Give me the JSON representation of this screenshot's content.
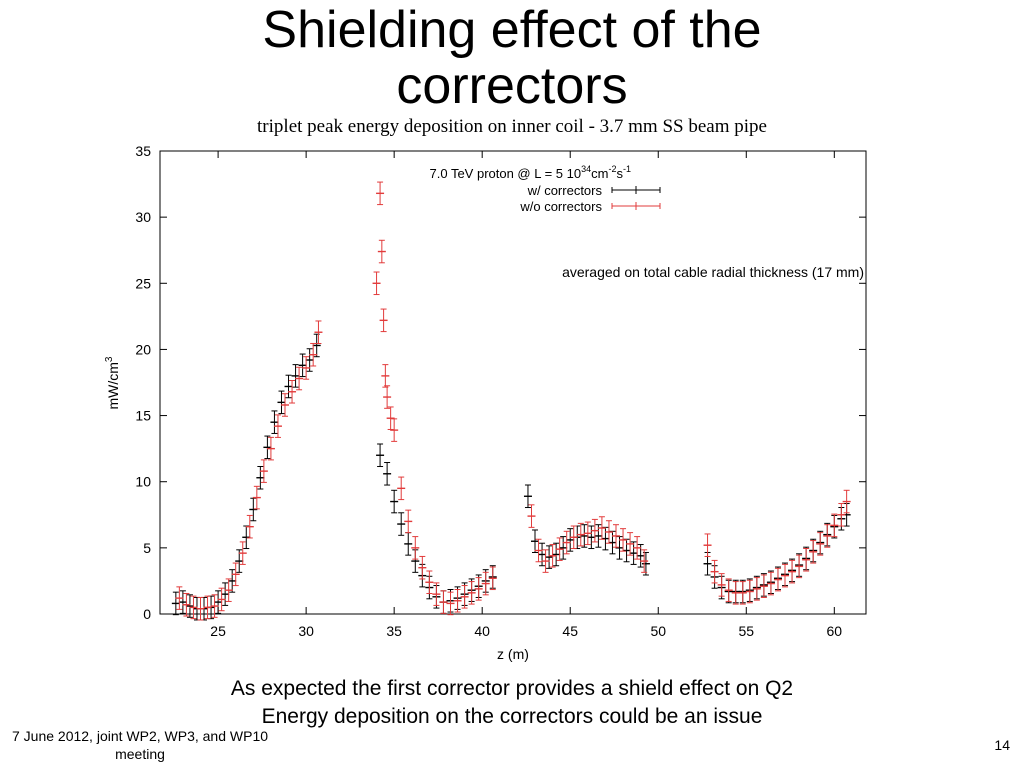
{
  "slide": {
    "title_line1": "Shielding effect of the",
    "title_line2": "correctors",
    "bullets": [
      "As expected the first corrector provides a shield effect on Q2",
      "Energy deposition on the correctors could be an issue"
    ],
    "footer_line1": "7 June 2012, joint WP2, WP3, and WP10",
    "footer_line2": "meeting",
    "page_number": "14"
  },
  "chart_data": {
    "type": "scatter",
    "title": "triplet peak energy deposition on inner coil - 3.7 mm SS beam pipe",
    "xlabel": "z (m)",
    "ylabel": "mW/cm",
    "ylabel_sup": "3",
    "xlim": [
      21.7,
      61.8
    ],
    "ylim": [
      0,
      35
    ],
    "xticks": [
      25,
      30,
      35,
      40,
      45,
      50,
      55,
      60
    ],
    "yticks": [
      0,
      5,
      10,
      15,
      20,
      25,
      30,
      35
    ],
    "legend_header": "7.0 TeV proton @ L = 5 10",
    "legend_header_sup1": "34",
    "legend_header_mid": "cm",
    "legend_header_sup2": "-2",
    "legend_header_s": "s",
    "legend_header_sup3": "-1",
    "annotation": "averaged on total cable radial thickness (17 mm)",
    "legend_position": "top-center",
    "colors": {
      "with": "#000000",
      "without": "#e23b3b"
    },
    "series": [
      {
        "name": "w/  correctors",
        "x": [
          22.6,
          23.0,
          23.4,
          23.8,
          24.2,
          24.6,
          25.0,
          25.4,
          25.8,
          26.2,
          26.6,
          27.0,
          27.4,
          27.8,
          28.2,
          28.6,
          29.0,
          29.4,
          29.8,
          30.2,
          30.6,
          34.2,
          34.6,
          35.0,
          35.4,
          35.8,
          36.2,
          36.6,
          37.0,
          37.4,
          37.8,
          38.2,
          38.6,
          39.0,
          39.4,
          39.8,
          40.2,
          40.6,
          42.6,
          43.0,
          43.4,
          43.8,
          44.2,
          44.6,
          45.0,
          45.4,
          45.8,
          46.2,
          46.6,
          47.0,
          47.4,
          47.8,
          48.2,
          48.6,
          49.0,
          49.3,
          52.8,
          53.2,
          53.6,
          54.0,
          54.4,
          54.8,
          55.2,
          55.6,
          56.0,
          56.4,
          56.8,
          57.2,
          57.6,
          58.0,
          58.4,
          58.8,
          59.2,
          59.6,
          60.0,
          60.4,
          60.7
        ],
        "y": [
          0.8,
          0.9,
          0.6,
          0.4,
          0.4,
          0.5,
          0.9,
          1.5,
          2.5,
          4.0,
          5.8,
          7.9,
          10.3,
          12.6,
          14.5,
          16.0,
          17.2,
          18.0,
          18.8,
          19.2,
          20.3,
          12.0,
          10.6,
          8.5,
          6.8,
          5.3,
          4.0,
          2.9,
          2.0,
          1.3,
          0.9,
          1.0,
          1.2,
          1.5,
          1.8,
          2.1,
          2.5,
          2.8,
          8.9,
          5.5,
          4.5,
          4.3,
          4.5,
          5.0,
          5.6,
          5.8,
          5.9,
          5.8,
          5.9,
          5.7,
          5.4,
          5.0,
          4.8,
          4.6,
          4.4,
          3.8,
          3.8,
          2.8,
          2.0,
          1.7,
          1.7,
          1.7,
          1.8,
          2.0,
          2.2,
          2.4,
          2.7,
          3.0,
          3.3,
          3.7,
          4.2,
          4.8,
          5.4,
          6.0,
          6.6,
          7.2,
          7.5
        ]
      },
      {
        "name": "w/o corrector",
        "name_suffix": "s",
        "x": [
          22.8,
          23.2,
          23.6,
          24.0,
          24.4,
          24.8,
          25.2,
          25.6,
          26.0,
          26.4,
          26.8,
          27.2,
          27.6,
          28.0,
          28.4,
          28.8,
          29.2,
          29.6,
          30.0,
          30.4,
          30.7,
          34.0,
          34.2,
          34.3,
          34.4,
          34.5,
          34.6,
          34.8,
          35.0,
          35.4,
          35.8,
          36.2,
          36.6,
          37.0,
          37.4,
          37.8,
          38.2,
          38.6,
          39.0,
          39.4,
          39.8,
          40.2,
          40.6,
          42.8,
          43.2,
          43.6,
          44.0,
          44.4,
          44.8,
          45.2,
          45.6,
          46.0,
          46.4,
          46.8,
          47.2,
          47.6,
          48.0,
          48.4,
          48.8,
          49.2,
          52.8,
          53.2,
          53.6,
          54.0,
          54.4,
          54.8,
          55.2,
          55.6,
          56.0,
          56.4,
          56.8,
          57.2,
          57.6,
          58.0,
          58.4,
          58.8,
          59.2,
          59.6,
          60.0,
          60.4,
          60.7
        ],
        "y": [
          1.2,
          0.7,
          0.5,
          0.4,
          0.5,
          0.6,
          1.1,
          1.8,
          3.0,
          4.6,
          6.6,
          8.8,
          10.8,
          12.5,
          14.2,
          15.8,
          16.8,
          17.8,
          18.6,
          19.6,
          21.3,
          25.0,
          31.8,
          27.4,
          22.2,
          18.0,
          16.4,
          14.8,
          13.9,
          9.5,
          7.0,
          5.0,
          3.5,
          2.4,
          1.5,
          0.9,
          0.8,
          1.0,
          1.3,
          1.6,
          1.9,
          2.3,
          2.7,
          7.4,
          4.8,
          4.0,
          4.4,
          4.9,
          5.4,
          5.8,
          6.0,
          6.1,
          6.3,
          6.5,
          6.2,
          5.9,
          5.6,
          5.3,
          5.0,
          4.0,
          5.2,
          3.2,
          2.2,
          1.8,
          1.6,
          1.6,
          1.7,
          1.9,
          2.1,
          2.3,
          2.6,
          2.9,
          3.2,
          3.6,
          4.1,
          4.7,
          5.3,
          5.9,
          6.7,
          7.5,
          8.5
        ]
      }
    ]
  }
}
